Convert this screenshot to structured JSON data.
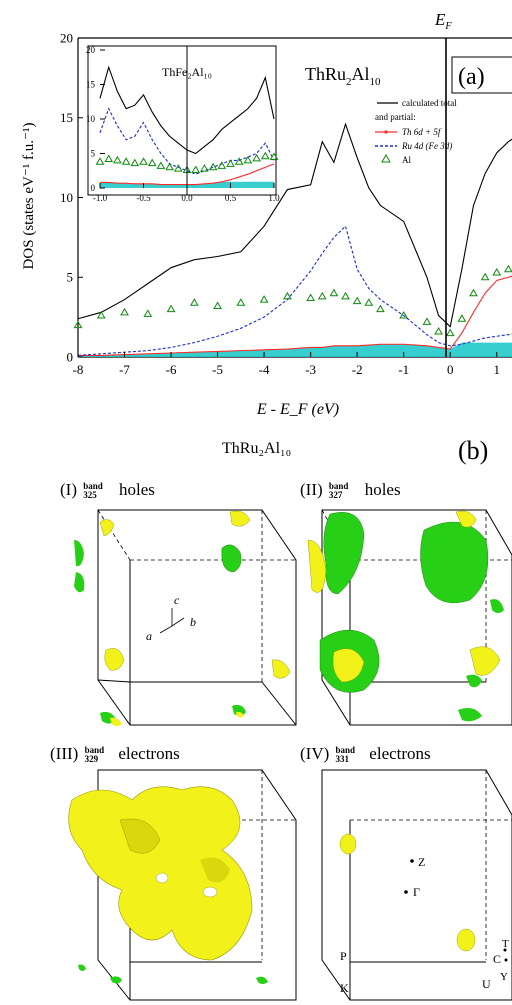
{
  "panel_a": {
    "label": "(a)",
    "title_main": "ThRu",
    "title_sub": "2",
    "title_end": "Al",
    "title_sub2": "10",
    "ef_label": "E",
    "ef_sub": "F",
    "legend": {
      "total": "calculated total",
      "partial_head": "and partial:",
      "th": "Th 6d + 5f",
      "ru": "Ru 4d  (Fe 3d)",
      "al": "Al"
    },
    "inset_title": "ThFe₂Al₁₀",
    "colors": {
      "total": "#000000",
      "th": "#ff2a2a",
      "ru": "#1b2bd6",
      "al": "#0c8a0c",
      "fill": "#20c9c9"
    }
  },
  "panel_b": {
    "label": "(b)",
    "title": "ThRu₂Al₁₀",
    "bands": [
      {
        "roman": "(I)",
        "band_word": "band",
        "band_no": "325",
        "kind": "holes"
      },
      {
        "roman": "(II)",
        "band_word": "band",
        "band_no": "327",
        "kind": "holes"
      },
      {
        "roman": "(III)",
        "band_word": "band",
        "band_no": "329",
        "kind": "electrons"
      },
      {
        "roman": "(IV)",
        "band_word": "band",
        "band_no": "331",
        "kind": "electrons"
      }
    ],
    "axes_labels": {
      "a": "a",
      "b": "b",
      "c": "c"
    },
    "bz_points": {
      "Z": "Z",
      "G": "Γ",
      "P": "P",
      "K": "K",
      "C": "C",
      "U": "U",
      "Y": "Y",
      "T": "T"
    },
    "colors": {
      "yellow": "#f2f21a",
      "green": "#27d016"
    }
  },
  "chart_data": [
    {
      "type": "line",
      "xlabel": "E - E_F (eV)",
      "ylabel": "DOS (states eV⁻¹ f.u.⁻¹)",
      "xlim": [
        -8,
        1.5
      ],
      "ylim": [
        0,
        20
      ],
      "xticks": [
        "-8",
        "-7",
        "-6",
        "-5",
        "-4",
        "-3",
        "-2",
        "-1",
        "0",
        "1"
      ],
      "yticks": [
        "0",
        "5",
        "10",
        "15",
        "20"
      ],
      "x": [
        -8,
        -7.5,
        -7,
        -6.5,
        -6,
        -5.5,
        -5,
        -4.5,
        -4,
        -3.5,
        -3,
        -2.75,
        -2.5,
        -2.25,
        -2,
        -1.75,
        -1.5,
        -1,
        -0.5,
        -0.25,
        0,
        0.25,
        0.5,
        0.75,
        1,
        1.25,
        1.5
      ],
      "series": [
        {
          "name": "calculated total",
          "values": [
            2.4,
            2.8,
            3.6,
            4.6,
            5.6,
            6.1,
            6.3,
            6.6,
            8.2,
            10.5,
            10.8,
            13.5,
            12.2,
            14.6,
            12.5,
            10.6,
            9.5,
            8.5,
            5.0,
            2.6,
            1.9,
            5.5,
            9.5,
            11.5,
            12.8,
            13.5,
            14.0
          ]
        },
        {
          "name": "Th 6d + 5f",
          "values": [
            0.1,
            0.1,
            0.15,
            0.2,
            0.25,
            0.3,
            0.35,
            0.4,
            0.45,
            0.5,
            0.6,
            0.6,
            0.7,
            0.7,
            0.7,
            0.75,
            0.8,
            0.8,
            0.7,
            0.6,
            0.5,
            1.5,
            2.8,
            4.0,
            4.8,
            5.0,
            5.2
          ]
        },
        {
          "name": "Ru 4d  (Fe 3d)",
          "values": [
            0.1,
            0.2,
            0.3,
            0.4,
            0.6,
            0.9,
            1.3,
            1.8,
            2.5,
            3.6,
            5.4,
            6.5,
            7.5,
            8.2,
            5.5,
            4.3,
            3.6,
            2.6,
            1.4,
            0.9,
            0.7,
            0.8,
            1.0,
            1.2,
            1.3,
            1.4,
            1.5
          ]
        },
        {
          "name": "Al",
          "values": [
            2.0,
            2.6,
            2.8,
            2.7,
            3.0,
            3.4,
            3.2,
            3.4,
            3.6,
            3.8,
            3.7,
            3.8,
            4.0,
            3.8,
            3.5,
            3.4,
            3.0,
            2.6,
            2.2,
            1.6,
            1.5,
            2.4,
            4.0,
            5.0,
            5.3,
            5.5,
            5.6
          ]
        }
      ]
    },
    {
      "type": "line",
      "title": "ThFe₂Al₁₀",
      "xlim": [
        -1.0,
        1.0
      ],
      "ylim": [
        0,
        20
      ],
      "xticks": [
        "-1.0",
        "-0.5",
        "0.0",
        "0.5",
        "1.0"
      ],
      "yticks": [
        "0",
        "5",
        "10",
        "15",
        "20"
      ],
      "x": [
        -1.0,
        -0.9,
        -0.8,
        -0.7,
        -0.6,
        -0.5,
        -0.4,
        -0.3,
        -0.2,
        -0.1,
        0.0,
        0.1,
        0.2,
        0.3,
        0.4,
        0.5,
        0.6,
        0.7,
        0.8,
        0.9,
        1.0
      ],
      "series": [
        {
          "name": "total",
          "values": [
            13.0,
            17.5,
            14.0,
            11.5,
            12.0,
            13.5,
            11.0,
            9.0,
            7.5,
            6.5,
            5.5,
            5.0,
            6.0,
            7.0,
            8.5,
            9.5,
            10.5,
            11.5,
            13.0,
            16.0,
            10.0
          ]
        },
        {
          "name": "Th",
          "values": [
            0.8,
            0.8,
            0.7,
            0.7,
            0.6,
            0.6,
            0.6,
            0.5,
            0.5,
            0.5,
            0.5,
            0.5,
            0.6,
            0.7,
            0.9,
            1.2,
            1.6,
            2.0,
            2.5,
            3.0,
            3.5
          ]
        },
        {
          "name": "Fe",
          "values": [
            8.0,
            11.5,
            9.0,
            7.0,
            7.5,
            9.5,
            7.0,
            5.0,
            3.5,
            3.0,
            2.5,
            2.0,
            2.5,
            3.0,
            3.5,
            4.0,
            4.0,
            4.5,
            5.0,
            6.5,
            4.0
          ]
        },
        {
          "name": "Al",
          "values": [
            3.8,
            4.2,
            4.0,
            3.8,
            3.6,
            3.8,
            3.6,
            3.2,
            3.0,
            2.8,
            2.6,
            2.6,
            2.8,
            3.0,
            3.2,
            3.5,
            3.8,
            4.0,
            4.3,
            4.6,
            4.5
          ]
        }
      ]
    }
  ]
}
